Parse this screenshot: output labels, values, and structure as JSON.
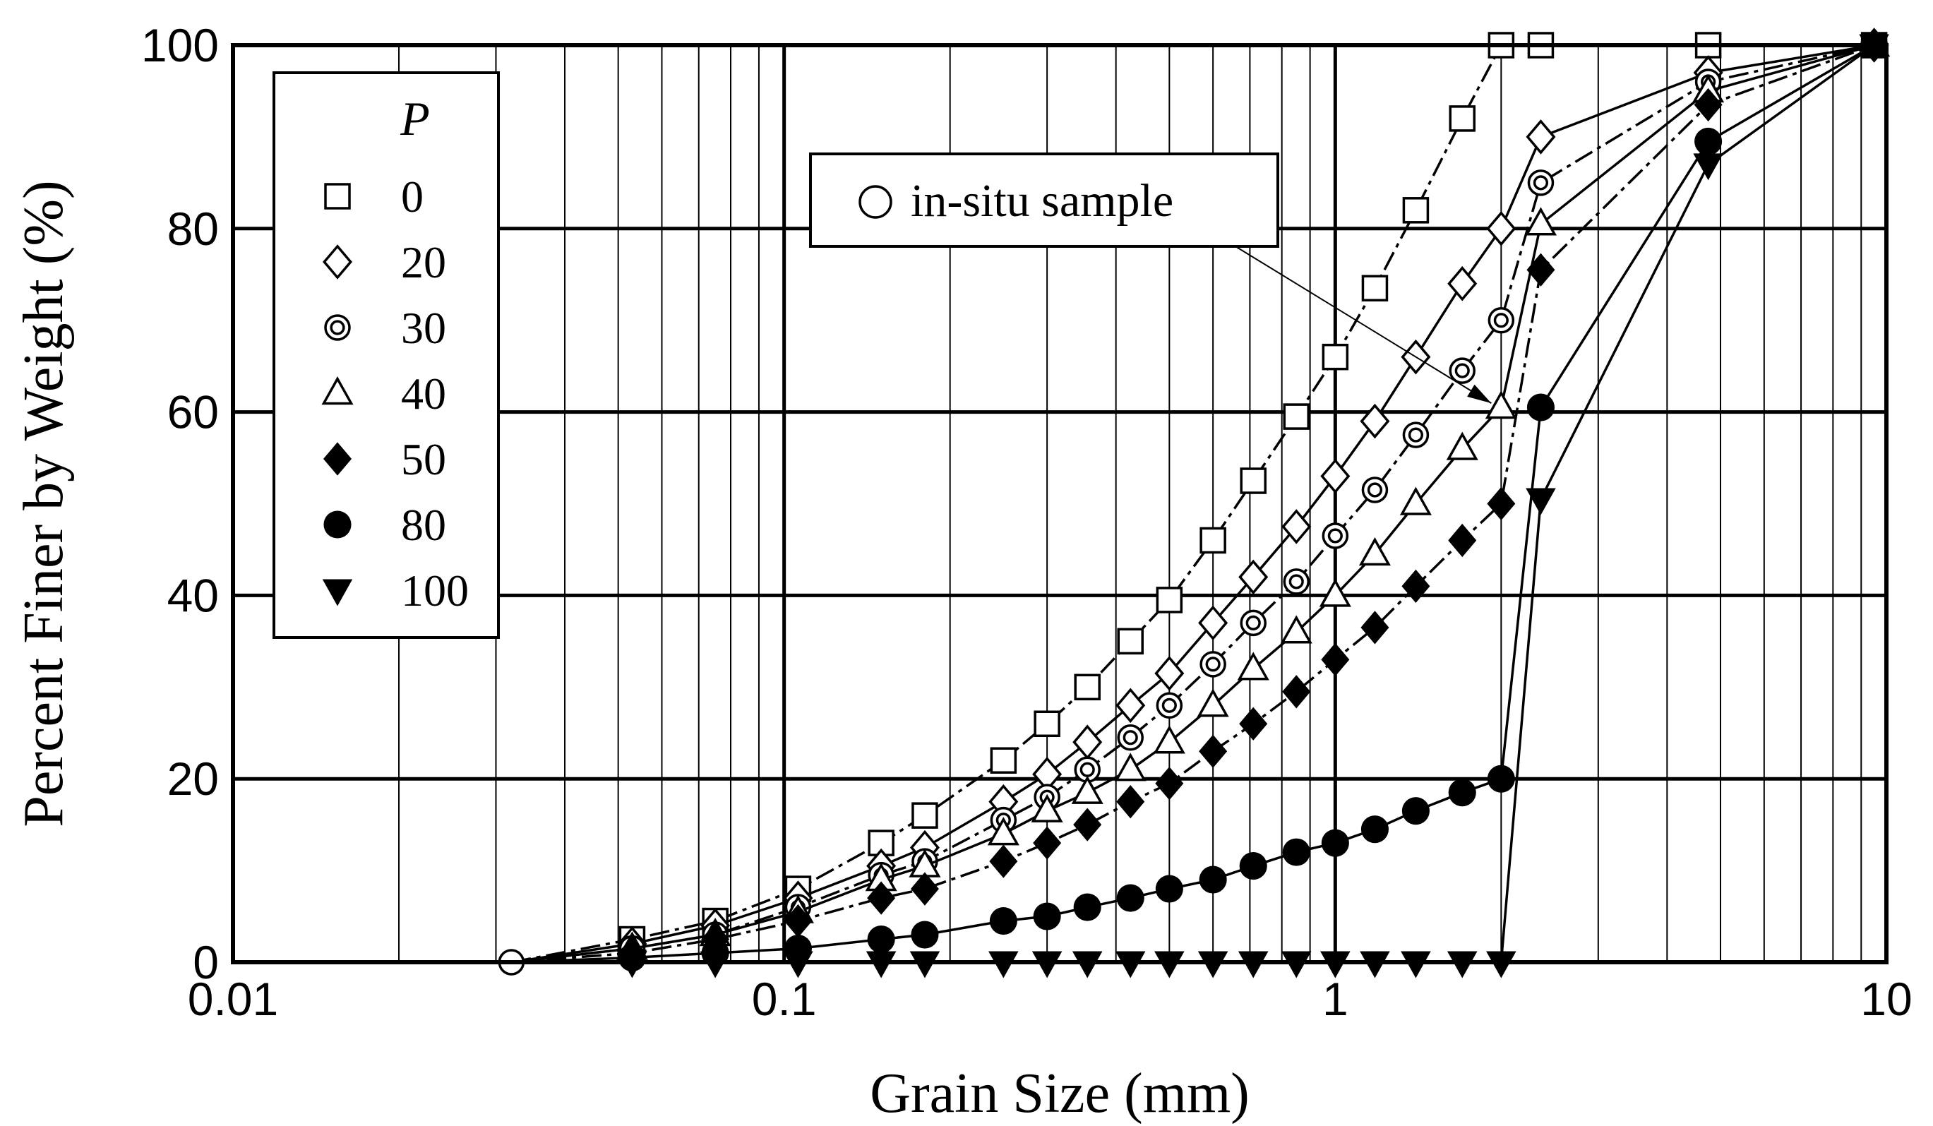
{
  "chart_data": {
    "type": "line",
    "xscale": "log",
    "xlim": [
      0.01,
      10
    ],
    "ylim": [
      0,
      100
    ],
    "xticks": [
      "0.01",
      "0.1",
      "1",
      "10"
    ],
    "yticks": [
      "0",
      "20",
      "40",
      "60",
      "80",
      "100"
    ],
    "xlabel": "Grain Size (mm)",
    "ylabel": "Percent Finer by Weight (%)",
    "grid": true,
    "legend": {
      "title": "P",
      "position": "top-left"
    },
    "annotation": {
      "text": "in-situ sample",
      "target_series": "40",
      "target_point": [
        2.0,
        60.5
      ]
    },
    "series": [
      {
        "name": "0",
        "marker": "square-open",
        "line": "dash-dot",
        "points": [
          [
            0.053,
            2.5
          ],
          [
            0.075,
            4.5
          ],
          [
            0.106,
            8.0
          ],
          [
            0.15,
            13.0
          ],
          [
            0.18,
            16.0
          ],
          [
            0.25,
            22.0
          ],
          [
            0.3,
            26.0
          ],
          [
            0.355,
            30.0
          ],
          [
            0.425,
            35.0
          ],
          [
            0.5,
            39.5
          ],
          [
            0.6,
            46.0
          ],
          [
            0.71,
            52.5
          ],
          [
            0.85,
            59.5
          ],
          [
            1.0,
            66.0
          ],
          [
            1.18,
            73.5
          ],
          [
            1.4,
            82.0
          ],
          [
            1.7,
            92.0
          ],
          [
            2.0,
            100.0
          ],
          [
            2.36,
            100.0
          ],
          [
            4.75,
            100.0
          ],
          [
            9.5,
            100.0
          ]
        ]
      },
      {
        "name": "20",
        "marker": "diamond-open",
        "line": "solid",
        "points": [
          [
            0.053,
            2.0
          ],
          [
            0.075,
            4.0
          ],
          [
            0.106,
            7.0
          ],
          [
            0.15,
            10.5
          ],
          [
            0.18,
            12.5
          ],
          [
            0.25,
            17.5
          ],
          [
            0.3,
            20.5
          ],
          [
            0.355,
            24.0
          ],
          [
            0.425,
            28.0
          ],
          [
            0.5,
            31.5
          ],
          [
            0.6,
            37.0
          ],
          [
            0.71,
            42.0
          ],
          [
            0.85,
            47.5
          ],
          [
            1.0,
            53.0
          ],
          [
            1.18,
            59.0
          ],
          [
            1.4,
            66.0
          ],
          [
            1.7,
            74.0
          ],
          [
            2.0,
            80.0
          ],
          [
            2.36,
            90.0
          ],
          [
            4.75,
            97.0
          ],
          [
            9.5,
            100.0
          ]
        ]
      },
      {
        "name": "30",
        "marker": "double-circle",
        "line": "dash-dot",
        "points": [
          [
            0.053,
            1.5
          ],
          [
            0.075,
            3.0
          ],
          [
            0.106,
            6.0
          ],
          [
            0.15,
            9.5
          ],
          [
            0.18,
            11.0
          ],
          [
            0.25,
            15.5
          ],
          [
            0.3,
            18.0
          ],
          [
            0.355,
            21.0
          ],
          [
            0.425,
            24.5
          ],
          [
            0.5,
            28.0
          ],
          [
            0.6,
            32.5
          ],
          [
            0.71,
            37.0
          ],
          [
            0.85,
            41.5
          ],
          [
            1.0,
            46.5
          ],
          [
            1.18,
            51.5
          ],
          [
            1.4,
            57.5
          ],
          [
            1.7,
            64.5
          ],
          [
            2.0,
            70.0
          ],
          [
            2.36,
            85.0
          ],
          [
            4.75,
            96.0
          ],
          [
            9.5,
            100.0
          ]
        ]
      },
      {
        "name": "40",
        "marker": "triangle-open",
        "line": "solid",
        "points": [
          [
            0.053,
            1.5
          ],
          [
            0.075,
            3.0
          ],
          [
            0.106,
            5.5
          ],
          [
            0.15,
            9.0
          ],
          [
            0.18,
            10.5
          ],
          [
            0.25,
            14.0
          ],
          [
            0.3,
            16.5
          ],
          [
            0.355,
            18.5
          ],
          [
            0.425,
            21.0
          ],
          [
            0.5,
            24.0
          ],
          [
            0.6,
            28.0
          ],
          [
            0.71,
            32.0
          ],
          [
            0.85,
            36.0
          ],
          [
            1.0,
            40.0
          ],
          [
            1.18,
            44.5
          ],
          [
            1.4,
            50.0
          ],
          [
            1.7,
            56.0
          ],
          [
            2.0,
            60.5
          ],
          [
            2.36,
            80.5
          ],
          [
            4.75,
            95.0
          ],
          [
            9.5,
            100.0
          ]
        ]
      },
      {
        "name": "50",
        "marker": "diamond-filled",
        "line": "dash-dot",
        "points": [
          [
            0.053,
            1.0
          ],
          [
            0.075,
            2.5
          ],
          [
            0.106,
            4.5
          ],
          [
            0.15,
            7.0
          ],
          [
            0.18,
            8.0
          ],
          [
            0.25,
            11.0
          ],
          [
            0.3,
            13.0
          ],
          [
            0.355,
            15.0
          ],
          [
            0.425,
            17.5
          ],
          [
            0.5,
            19.5
          ],
          [
            0.6,
            23.0
          ],
          [
            0.71,
            26.0
          ],
          [
            0.85,
            29.5
          ],
          [
            1.0,
            33.0
          ],
          [
            1.18,
            36.5
          ],
          [
            1.4,
            41.0
          ],
          [
            1.7,
            46.0
          ],
          [
            2.0,
            50.0
          ],
          [
            2.36,
            75.5
          ],
          [
            4.75,
            93.5
          ],
          [
            9.5,
            100.0
          ]
        ]
      },
      {
        "name": "80",
        "marker": "circle-filled",
        "line": "solid",
        "points": [
          [
            0.032,
            0.0
          ],
          [
            0.053,
            0.5
          ],
          [
            0.075,
            1.0
          ],
          [
            0.106,
            1.5
          ],
          [
            0.15,
            2.5
          ],
          [
            0.18,
            3.0
          ],
          [
            0.25,
            4.5
          ],
          [
            0.3,
            5.0
          ],
          [
            0.355,
            6.0
          ],
          [
            0.425,
            7.0
          ],
          [
            0.5,
            8.0
          ],
          [
            0.6,
            9.0
          ],
          [
            0.71,
            10.5
          ],
          [
            0.85,
            12.0
          ],
          [
            1.0,
            13.0
          ],
          [
            1.18,
            14.5
          ],
          [
            1.4,
            16.5
          ],
          [
            1.7,
            18.5
          ],
          [
            2.0,
            20.0
          ],
          [
            2.36,
            60.5
          ],
          [
            4.75,
            89.5
          ],
          [
            9.5,
            100.0
          ]
        ]
      },
      {
        "name": "100",
        "marker": "triangle-down-filled",
        "line": "solid",
        "points": [
          [
            0.032,
            0.0
          ],
          [
            0.053,
            0.0
          ],
          [
            0.075,
            0.0
          ],
          [
            0.106,
            0.0
          ],
          [
            0.15,
            0.0
          ],
          [
            0.18,
            0.0
          ],
          [
            0.25,
            0.0
          ],
          [
            0.3,
            0.0
          ],
          [
            0.355,
            0.0
          ],
          [
            0.425,
            0.0
          ],
          [
            0.5,
            0.0
          ],
          [
            0.6,
            0.0
          ],
          [
            0.71,
            0.0
          ],
          [
            0.85,
            0.0
          ],
          [
            1.0,
            0.0
          ],
          [
            1.18,
            0.0
          ],
          [
            1.4,
            0.0
          ],
          [
            1.7,
            0.0
          ],
          [
            2.0,
            0.0
          ],
          [
            2.36,
            50.5
          ],
          [
            4.75,
            87.0
          ],
          [
            9.5,
            100.0
          ]
        ]
      }
    ],
    "shared_origin": {
      "name": "in-situ sample",
      "marker": "circle-open",
      "points": [
        [
          0.032,
          0.0
        ]
      ]
    }
  }
}
